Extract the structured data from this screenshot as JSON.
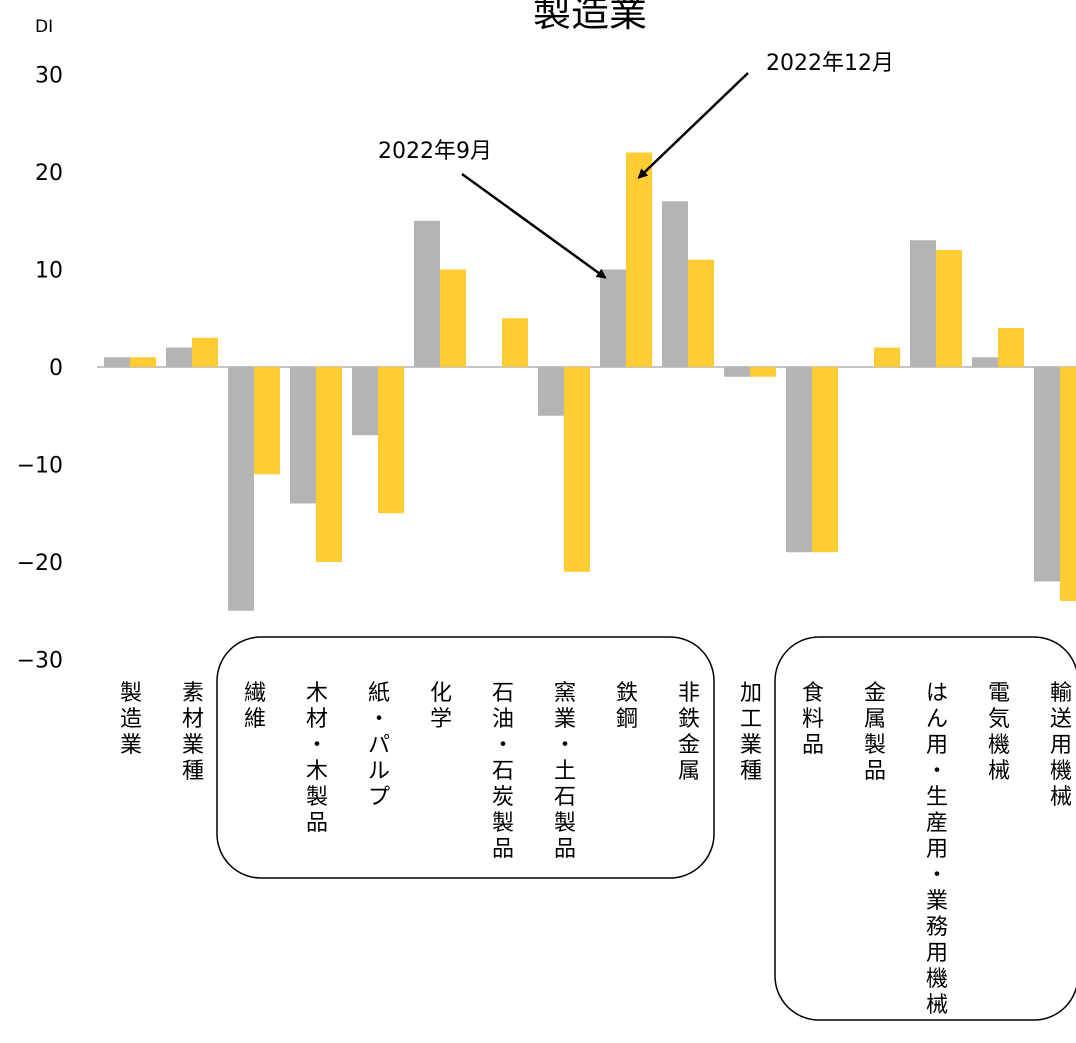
{
  "chart_data": {
    "type": "bar",
    "title": "製造業",
    "ylabel": "DI",
    "ylim": [
      -30,
      30
    ],
    "yticks": [
      30,
      20,
      10,
      0,
      -10,
      -20,
      -30
    ],
    "grid": false,
    "categories": [
      "製造業",
      "素材業種",
      "繊維",
      "木材・木製品",
      "紙・パルプ",
      "化学",
      "石油・石炭製品",
      "窯業・土石製品",
      "鉄鋼",
      "非鉄金属",
      "加工業種",
      "食料品",
      "金属製品",
      "はん用・生産用・業務用機械",
      "電気機械",
      "輸送用機械"
    ],
    "series": [
      {
        "name": "2022年9月",
        "color": "#b4b4b4",
        "values": [
          1,
          2,
          -25,
          -14,
          -7,
          15,
          0,
          -5,
          10,
          17,
          -1,
          -19,
          0,
          13,
          1,
          -22
        ]
      },
      {
        "name": "2022年12月",
        "color": "#ffcc33",
        "values": [
          1,
          3,
          -11,
          -20,
          -15,
          10,
          5,
          -21,
          22,
          11,
          -1,
          -19,
          2,
          12,
          4,
          -24
        ]
      }
    ],
    "annotations": [
      {
        "text": "2022年9月",
        "series": 0,
        "category": 8
      },
      {
        "text": "2022年12月",
        "series": 1,
        "category": 8
      }
    ]
  }
}
